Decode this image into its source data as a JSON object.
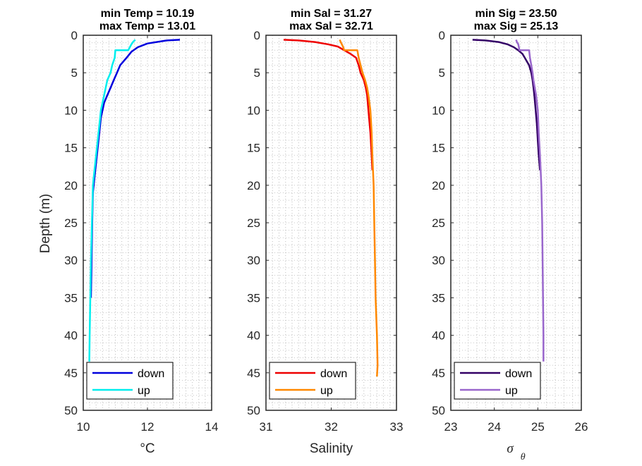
{
  "y_axis_label": "Depth (m)",
  "chart_data": [
    {
      "type": "line",
      "title_lines": [
        "min Temp = 10.19",
        "max Temp = 13.01"
      ],
      "xlabel": "°C",
      "ylabel": "Depth (m)",
      "xlim": [
        10,
        14
      ],
      "ylim": [
        0,
        50
      ],
      "y_reversed": true,
      "grid": "dotted",
      "minor_grid": true,
      "x_ticks": [
        10,
        12,
        14
      ],
      "y_ticks": [
        0,
        5,
        10,
        15,
        20,
        25,
        30,
        35,
        40,
        45,
        50
      ],
      "legend_position": "bottom-left",
      "series": [
        {
          "name": "down",
          "color": "#0000dd",
          "x": [
            13.01,
            12.6,
            12.0,
            11.7,
            11.5,
            11.35,
            11.25,
            11.15,
            11.05,
            10.95,
            10.85,
            10.75,
            10.65,
            10.55,
            10.5,
            10.45,
            10.4,
            10.35,
            10.3,
            10.28,
            10.26,
            10.24
          ],
          "y": [
            0.6,
            0.7,
            1.1,
            1.6,
            2.2,
            3.0,
            3.5,
            4.0,
            5.0,
            6.0,
            7.0,
            8.0,
            9.0,
            11.0,
            13.0,
            15.0,
            17.0,
            19.0,
            21.0,
            25.0,
            30.0,
            35.0
          ]
        },
        {
          "name": "up",
          "color": "#00eeee",
          "x": [
            11.62,
            11.55,
            11.5,
            11.45,
            11.4,
            11.0,
            10.98,
            10.9,
            10.85,
            10.75,
            10.7,
            10.65,
            10.55,
            10.5,
            10.45,
            10.4,
            10.35,
            10.3,
            10.27,
            10.24,
            10.22,
            10.2,
            10.19
          ],
          "y": [
            0.6,
            0.9,
            1.2,
            1.6,
            2.0,
            2.0,
            3.0,
            4.0,
            5.0,
            6.0,
            7.0,
            8.0,
            10.0,
            12.0,
            14.0,
            16.0,
            18.0,
            20.0,
            25.0,
            30.0,
            35.0,
            40.0,
            43.5
          ]
        }
      ]
    },
    {
      "type": "line",
      "title_lines": [
        "min Sal = 31.27",
        "max Sal = 32.71"
      ],
      "xlabel": "Salinity",
      "xlim": [
        31,
        33
      ],
      "ylim": [
        0,
        50
      ],
      "y_reversed": true,
      "grid": "dotted",
      "minor_grid": true,
      "x_ticks": [
        31,
        32,
        33
      ],
      "y_ticks": [
        0,
        5,
        10,
        15,
        20,
        25,
        30,
        35,
        40,
        45,
        50
      ],
      "legend_position": "bottom-left",
      "series": [
        {
          "name": "down",
          "color": "#ee0000",
          "x": [
            31.27,
            31.5,
            31.75,
            31.95,
            32.1,
            32.2,
            32.3,
            32.38,
            32.42,
            32.45,
            32.5,
            32.53,
            32.55,
            32.57,
            32.6,
            32.62,
            32.63
          ],
          "y": [
            0.6,
            0.7,
            0.9,
            1.2,
            1.5,
            2.0,
            2.5,
            3.0,
            4.0,
            5.0,
            6.0,
            7.0,
            8.0,
            10.0,
            13.0,
            16.0,
            18.0
          ]
        },
        {
          "name": "up",
          "color": "#ff8800",
          "x": [
            32.13,
            32.15,
            32.18,
            32.2,
            32.4,
            32.42,
            32.45,
            32.48,
            32.52,
            32.55,
            32.57,
            32.6,
            32.62,
            32.63,
            32.65,
            32.66,
            32.67,
            32.68,
            32.7,
            32.71,
            32.7
          ],
          "y": [
            0.6,
            1.0,
            1.5,
            2.0,
            2.0,
            3.0,
            4.0,
            5.0,
            6.0,
            7.0,
            8.0,
            10.0,
            13.0,
            16.0,
            20.0,
            25.0,
            30.0,
            35.0,
            40.0,
            44.0,
            45.5
          ]
        }
      ]
    },
    {
      "type": "line",
      "title_lines": [
        "min Sig = 23.50",
        "max Sig = 25.13"
      ],
      "xlabel": "σ θ",
      "xlim": [
        23,
        26
      ],
      "ylim": [
        0,
        50
      ],
      "y_reversed": true,
      "grid": "dotted",
      "minor_grid": true,
      "x_ticks": [
        23,
        24,
        25,
        26
      ],
      "y_ticks": [
        0,
        5,
        10,
        15,
        20,
        25,
        30,
        35,
        40,
        45,
        50
      ],
      "legend_position": "bottom-left",
      "series": [
        {
          "name": "down",
          "color": "#330066",
          "x": [
            23.5,
            23.8,
            24.1,
            24.3,
            24.45,
            24.55,
            24.65,
            24.7,
            24.75,
            24.8,
            24.85,
            24.88,
            24.9,
            24.92,
            24.95,
            24.98,
            25.0,
            25.02,
            25.05
          ],
          "y": [
            0.6,
            0.7,
            0.9,
            1.2,
            1.6,
            2.0,
            2.5,
            3.0,
            3.5,
            4.0,
            5.0,
            6.0,
            7.0,
            8.0,
            10.0,
            12.0,
            14.0,
            16.0,
            18.0
          ]
        },
        {
          "name": "up",
          "color": "#9966cc",
          "x": [
            24.5,
            24.52,
            24.55,
            24.58,
            24.8,
            24.82,
            24.85,
            24.88,
            24.9,
            24.93,
            24.96,
            25.0,
            25.02,
            25.05,
            25.08,
            25.1,
            25.11,
            25.12,
            25.13,
            25.13
          ],
          "y": [
            0.6,
            0.9,
            1.2,
            2.0,
            2.0,
            3.0,
            4.0,
            5.0,
            6.0,
            7.0,
            8.0,
            10.0,
            13.0,
            16.0,
            20.0,
            25.0,
            30.0,
            35.0,
            40.0,
            43.5
          ]
        }
      ]
    }
  ]
}
